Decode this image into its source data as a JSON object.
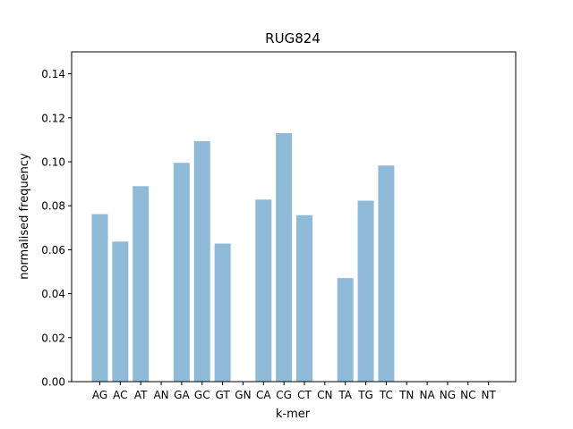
{
  "chart_data": {
    "type": "bar",
    "title": "RUG824",
    "xlabel": "k-mer",
    "ylabel": "normalised frequency",
    "categories": [
      "AG",
      "AC",
      "AT",
      "AN",
      "GA",
      "GC",
      "GT",
      "GN",
      "CA",
      "CG",
      "CT",
      "CN",
      "TA",
      "TG",
      "TC",
      "TN",
      "NA",
      "NG",
      "NC",
      "NT"
    ],
    "values": [
      0.0762,
      0.0637,
      0.0889,
      0,
      0.0995,
      0.1094,
      0.0628,
      0,
      0.0828,
      0.113,
      0.0757,
      0,
      0.0471,
      0.0823,
      0.0983,
      0,
      0,
      0,
      0,
      0
    ],
    "ylim": [
      0,
      0.15
    ],
    "yticks": [
      "0.00",
      "0.02",
      "0.04",
      "0.06",
      "0.08",
      "0.10",
      "0.12",
      "0.14"
    ],
    "grid": false,
    "bar_color": "#8fbbd9"
  }
}
